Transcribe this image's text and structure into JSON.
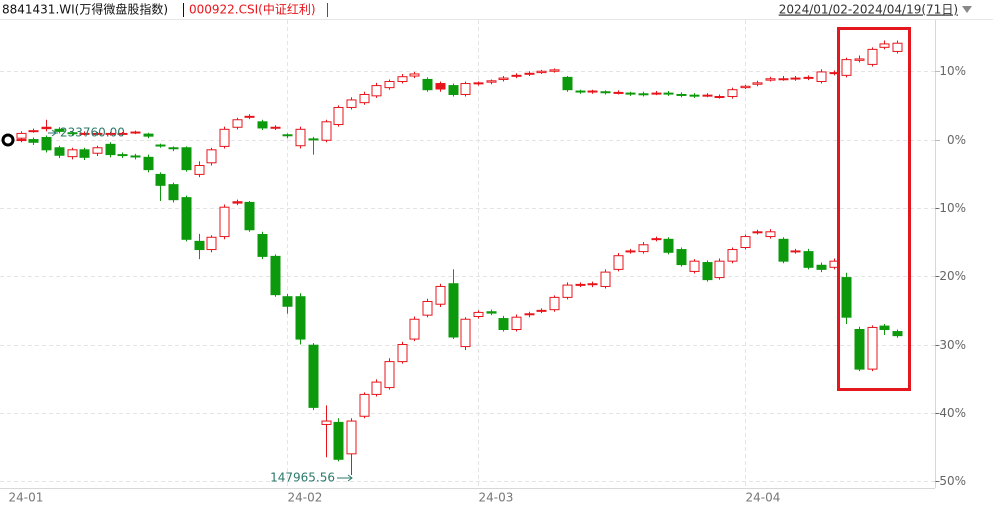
{
  "chart_data": {
    "type": "candlestick",
    "subtitle": "2024/01/02-2024/04/19(71日)",
    "categories": [
      "24-01",
      null,
      null,
      null,
      null,
      null,
      null,
      null,
      null,
      null,
      null,
      null,
      null,
      null,
      null,
      null,
      null,
      null,
      null,
      null,
      null,
      null,
      "24-02",
      null,
      null,
      null,
      null,
      null,
      null,
      null,
      null,
      null,
      null,
      null,
      null,
      null,
      null,
      "24-03",
      null,
      null,
      null,
      null,
      null,
      null,
      null,
      null,
      null,
      null,
      null,
      null,
      null,
      null,
      null,
      null,
      null,
      null,
      null,
      null,
      "24-04",
      null,
      null,
      null,
      null,
      null,
      null,
      null,
      null,
      null,
      null,
      null,
      null
    ],
    "ylim": [
      -51,
      17.5
    ],
    "yticks": [
      {
        "value": 10,
        "label": "10%"
      },
      {
        "value": 0,
        "label": "0%"
      },
      {
        "value": -10,
        "label": "-10%"
      },
      {
        "value": -20,
        "label": "-20%"
      },
      {
        "value": -30,
        "label": "-30%"
      },
      {
        "value": -40,
        "label": "-40%"
      },
      {
        "value": -50,
        "label": "-50%"
      }
    ],
    "grid": true,
    "up_color": "#e8141b",
    "down_color": "#0c9a0c",
    "annotations": [
      "233760.00",
      "147965.56"
    ],
    "series": [
      {
        "name": "8841431.WI(万得微盘股指数)",
        "color": "#111111",
        "open": [
          0,
          0,
          0,
          0.3,
          -1.2,
          -2.5,
          -1.5,
          -2.0,
          -0.7,
          -2.2,
          -2.4,
          -2.6,
          -5.1,
          -6.6,
          -8.5,
          -14.9,
          -16.1,
          -14.2,
          -9.1,
          -9.2,
          -13.9,
          -17.1,
          -23.0,
          -23.0,
          -30.1,
          -41.7,
          -41.4,
          -46.0,
          -40.5,
          -37.3,
          -36.3,
          -32.5,
          -29.2,
          -25.7,
          -24.1,
          -21.1,
          -30.3,
          -25.9,
          -25.2,
          -26.2,
          -27.8,
          -25.5,
          -25.0,
          -24.9,
          -23.1,
          -21.2,
          -21.1,
          -21.5,
          -19.0,
          -16.3,
          -16.4,
          -14.5,
          -14.6,
          -16.1,
          -19.3,
          -18.0,
          -20.2,
          -17.8,
          -15.8,
          -13.5,
          -14.2,
          -14.6,
          -16.3,
          -16.4,
          -18.4,
          -18.7,
          -20.2,
          -27.8,
          -33.6,
          -27.3,
          -28.1
        ],
        "high": [
          0.4,
          0.3,
          0.3,
          0.6,
          -0.9,
          -1.2,
          -1.2,
          -0.9,
          -0.4,
          -1.9,
          -2.1,
          -2.2,
          -4.8,
          -6.3,
          -8.2,
          -13.8,
          -14.0,
          -9.5,
          -8.8,
          -9.0,
          -13.5,
          -16.8,
          -22.6,
          -22.5,
          -29.8,
          -38.9,
          -40.8,
          -40.8,
          -37.0,
          -35.1,
          -32.0,
          -29.6,
          -25.9,
          -23.3,
          -21.1,
          -19.0,
          -26.0,
          -25.0,
          -24.9,
          -25.8,
          -25.6,
          -25.2,
          -24.7,
          -22.8,
          -20.9,
          -20.9,
          -20.8,
          -19.0,
          -16.6,
          -16.0,
          -15.0,
          -14.2,
          -14.3,
          -15.8,
          -17.5,
          -17.7,
          -17.4,
          -15.8,
          -13.9,
          -13.2,
          -13.1,
          -14.3,
          -16.0,
          -16.0,
          -18.0,
          -17.4,
          -19.5,
          -27.4,
          -27.2,
          -27.0,
          -27.8
        ],
        "low": [
          -0.5,
          -0.4,
          -0.8,
          -1.9,
          -2.7,
          -2.9,
          -3.0,
          -2.4,
          -2.6,
          -2.7,
          -2.9,
          -4.8,
          -9.0,
          -9.2,
          -14.9,
          -17.5,
          -16.5,
          -14.6,
          -9.6,
          -13.5,
          -17.5,
          -23.0,
          -25.5,
          -30.0,
          -39.6,
          -46.5,
          -47.1,
          -49.1,
          -40.8,
          -37.6,
          -36.6,
          -32.8,
          -29.5,
          -26.0,
          -24.5,
          -29.2,
          -30.8,
          -26.2,
          -25.7,
          -28.1,
          -28.1,
          -26.0,
          -25.4,
          -25.2,
          -23.4,
          -21.6,
          -21.6,
          -21.8,
          -19.3,
          -16.7,
          -16.7,
          -14.9,
          -16.8,
          -18.6,
          -19.6,
          -20.8,
          -20.5,
          -18.1,
          -16.1,
          -13.9,
          -14.5,
          -18.1,
          -16.7,
          -19.0,
          -19.4,
          -19.0,
          -27.0,
          -33.9,
          -33.9,
          -28.6,
          -29.0
        ],
        "close": [
          0,
          0,
          -0.4,
          -1.5,
          -2.3,
          -1.5,
          -2.6,
          -1.2,
          -2.2,
          -2.3,
          -2.5,
          -4.4,
          -6.7,
          -8.8,
          -14.6,
          -16.1,
          -14.3,
          -9.9,
          -9.3,
          -13.2,
          -17.1,
          -22.7,
          -24.4,
          -29.2,
          -39.2,
          -41.2,
          -46.8,
          -41.2,
          -37.3,
          -35.5,
          -32.5,
          -30.0,
          -26.3,
          -23.7,
          -21.5,
          -28.9,
          -26.3,
          -25.3,
          -25.4,
          -27.8,
          -26.0,
          -25.6,
          -25.1,
          -23.1,
          -21.3,
          -21.3,
          -21.2,
          -19.4,
          -17.0,
          -16.4,
          -15.4,
          -14.6,
          -16.5,
          -18.3,
          -17.8,
          -20.5,
          -17.8,
          -16.1,
          -14.2,
          -13.6,
          -13.5,
          -17.8,
          -16.4,
          -18.7,
          -19.0,
          -17.8,
          -26.0,
          -33.6,
          -27.5,
          -27.8,
          -28.7
        ]
      },
      {
        "name": "000922.CSI(中证红利)",
        "color": "#e8141b",
        "open": [
          0,
          0.2,
          1.3,
          1.8,
          1.5,
          1.0,
          0.9,
          0.9,
          0.9,
          0.8,
          1.0,
          0.8,
          -0.8,
          -1.2,
          -1.2,
          -5.1,
          -3.4,
          -1.0,
          1.8,
          3.3,
          2.6,
          1.8,
          0.7,
          -0.9,
          0.1,
          -0.1,
          2.2,
          4.7,
          5.4,
          6.4,
          7.6,
          8.5,
          9.3,
          8.8,
          8.2,
          7.9,
          6.6,
          8.2,
          8.4,
          8.8,
          9.3,
          9.6,
          9.8,
          10.0,
          9.1,
          7.1,
          7.0,
          7.0,
          6.9,
          6.8,
          6.7,
          6.8,
          6.8,
          6.6,
          6.5,
          6.5,
          6.3,
          6.3,
          7.6,
          8.1,
          8.7,
          8.9,
          8.9,
          9.0,
          8.5,
          9.7,
          9.4,
          11.6,
          11.0,
          13.5,
          12.9
        ],
        "high": [
          0.3,
          1.2,
          1.6,
          2.9,
          1.8,
          1.2,
          1.2,
          1.1,
          1.1,
          1.1,
          1.3,
          1.0,
          -0.6,
          -1.0,
          -1.0,
          -3.2,
          -1.2,
          1.9,
          3.2,
          3.7,
          2.9,
          2.1,
          0.9,
          1.9,
          0.4,
          2.9,
          5.0,
          6.2,
          7.0,
          8.3,
          8.8,
          9.6,
          9.9,
          9.1,
          8.5,
          8.2,
          8.5,
          8.5,
          8.8,
          9.3,
          9.7,
          10.0,
          10.2,
          10.4,
          9.3,
          7.3,
          7.3,
          7.2,
          7.2,
          7.0,
          7.0,
          7.1,
          7.1,
          6.9,
          6.8,
          6.8,
          6.6,
          7.6,
          8.0,
          8.6,
          9.2,
          9.3,
          9.3,
          9.4,
          10.3,
          10.1,
          12.0,
          12.3,
          13.5,
          14.5,
          14.5
        ],
        "low": [
          -0.6,
          0,
          1.0,
          1.2,
          0.9,
          0.6,
          0.6,
          0.6,
          0.6,
          0.5,
          0.8,
          0.2,
          -1.2,
          -1.7,
          -4.7,
          -5.5,
          -3.8,
          -1.3,
          1.5,
          3.0,
          1.4,
          1.4,
          0.2,
          -1.3,
          -2.2,
          -0.4,
          1.9,
          4.4,
          5.1,
          6.1,
          7.3,
          8.2,
          9.0,
          7.0,
          7.0,
          6.3,
          6.3,
          7.9,
          8.1,
          8.5,
          9.0,
          9.3,
          9.6,
          9.8,
          7.0,
          6.7,
          6.7,
          6.6,
          6.6,
          6.4,
          6.3,
          6.5,
          6.4,
          6.2,
          6.1,
          6.2,
          6.0,
          6.0,
          7.4,
          7.8,
          8.5,
          8.6,
          8.6,
          8.7,
          8.2,
          9.4,
          9.1,
          11.3,
          10.7,
          13.2,
          12.6
        ],
        "close": [
          0,
          0.9,
          1.3,
          1.6,
          1.2,
          0.9,
          0.9,
          0.9,
          0.9,
          0.9,
          1.1,
          0.5,
          -0.9,
          -1.3,
          -4.4,
          -3.8,
          -1.5,
          1.5,
          2.9,
          3.4,
          1.7,
          1.8,
          0.6,
          1.5,
          0,
          2.6,
          4.7,
          5.8,
          6.6,
          7.9,
          8.5,
          9.2,
          9.6,
          7.3,
          7.4,
          6.6,
          8.2,
          8.3,
          8.6,
          9.0,
          9.4,
          9.7,
          10.0,
          10.2,
          7.3,
          7.0,
          7.1,
          6.9,
          6.9,
          6.7,
          6.6,
          6.8,
          6.7,
          6.5,
          6.4,
          6.5,
          6.3,
          7.3,
          7.8,
          8.3,
          8.9,
          8.9,
          9.0,
          9.1,
          9.9,
          9.8,
          11.7,
          11.8,
          13.2,
          14.0,
          14.1
        ]
      }
    ]
  }
}
